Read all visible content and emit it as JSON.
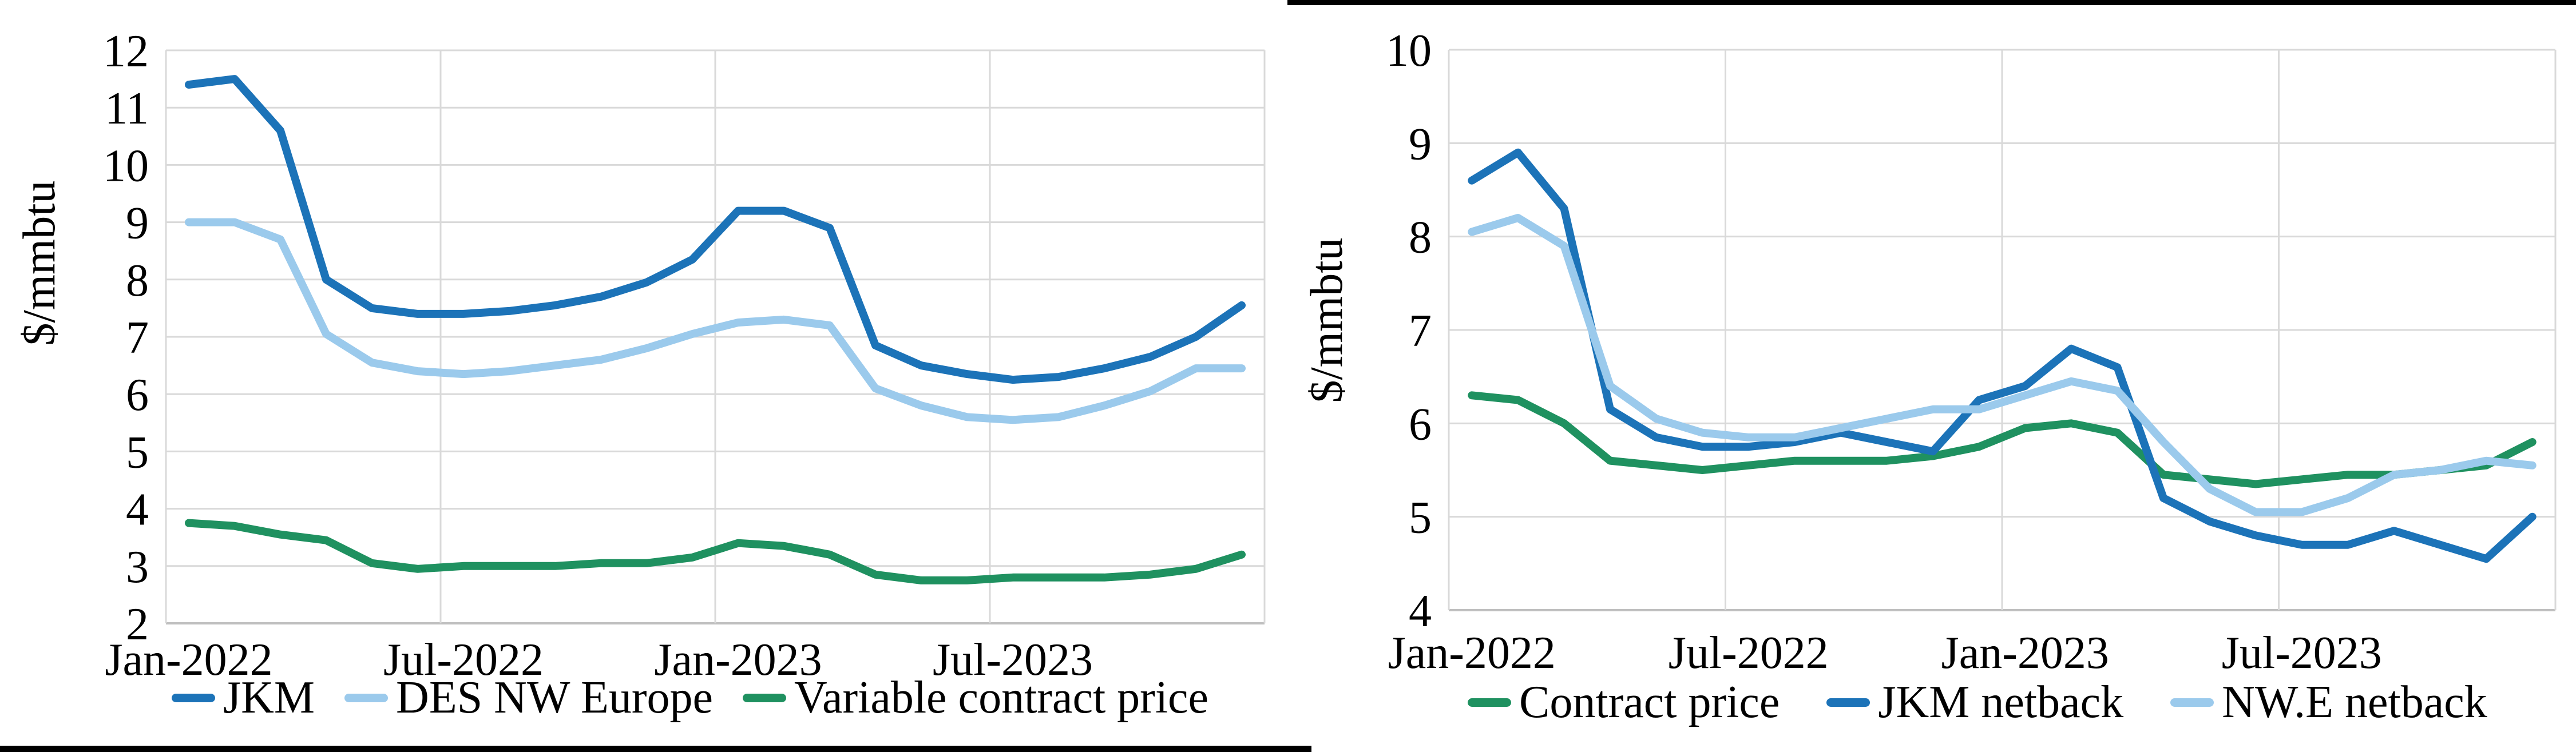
{
  "figure": {
    "background": "#ffffff",
    "border_bar_color": "#000000"
  },
  "colors": {
    "gridline": "#d9d9d9",
    "axis_line": "#bfbfbf",
    "text": "#000000",
    "dark_blue": "#1c73b8",
    "light_blue": "#9bcaec",
    "green": "#1f9160"
  },
  "chart_data": [
    {
      "type": "line",
      "title": "",
      "xlabel": "",
      "ylabel": "$/mmbtu",
      "ylim": [
        2,
        12
      ],
      "ytick_interval": 1,
      "grid": true,
      "legend_position": "bottom",
      "categories": [
        "Jan-2022",
        "Feb-2022",
        "Mar-2022",
        "Apr-2022",
        "May-2022",
        "Jun-2022",
        "Jul-2022",
        "Aug-2022",
        "Sep-2022",
        "Oct-2022",
        "Nov-2022",
        "Dec-2022",
        "Jan-2023",
        "Feb-2023",
        "Mar-2023",
        "Apr-2023",
        "May-2023",
        "Jun-2023",
        "Jul-2023",
        "Aug-2023",
        "Sep-2023",
        "Oct-2023",
        "Nov-2023",
        "Dec-2023"
      ],
      "xtick_indices": [
        0,
        6,
        12,
        18
      ],
      "xtick_labels": [
        "Jan-2022",
        "Jul-2022",
        "Jan-2023",
        "Jul-2023"
      ],
      "series": [
        {
          "name": "JKM",
          "color": "#1c73b8",
          "values": [
            11.4,
            11.5,
            10.6,
            8.0,
            7.5,
            7.4,
            7.4,
            7.45,
            7.55,
            7.7,
            7.95,
            8.35,
            9.2,
            9.2,
            8.9,
            6.85,
            6.5,
            6.35,
            6.25,
            6.3,
            6.45,
            6.65,
            7.0,
            7.55
          ]
        },
        {
          "name": "DES NW Europe",
          "color": "#9bcaec",
          "values": [
            9.0,
            9.0,
            8.7,
            7.05,
            6.55,
            6.4,
            6.35,
            6.4,
            6.5,
            6.6,
            6.8,
            7.05,
            7.25,
            7.3,
            7.2,
            6.1,
            5.8,
            5.6,
            5.55,
            5.6,
            5.8,
            6.05,
            6.45,
            6.45
          ]
        },
        {
          "name": "Variable contract price",
          "color": "#1f9160",
          "values": [
            3.75,
            3.7,
            3.55,
            3.45,
            3.05,
            2.95,
            3.0,
            3.0,
            3.0,
            3.05,
            3.05,
            3.15,
            3.4,
            3.35,
            3.2,
            2.85,
            2.75,
            2.75,
            2.8,
            2.8,
            2.8,
            2.85,
            2.95,
            3.2
          ]
        }
      ]
    },
    {
      "type": "line",
      "title": "",
      "xlabel": "",
      "ylabel": "$/mmbtu",
      "ylim": [
        4,
        10
      ],
      "ytick_interval": 1,
      "grid": true,
      "legend_position": "bottom",
      "categories": [
        "Jan-2022",
        "Feb-2022",
        "Mar-2022",
        "Apr-2022",
        "May-2022",
        "Jun-2022",
        "Jul-2022",
        "Aug-2022",
        "Sep-2022",
        "Oct-2022",
        "Nov-2022",
        "Dec-2022",
        "Jan-2023",
        "Feb-2023",
        "Mar-2023",
        "Apr-2023",
        "May-2023",
        "Jun-2023",
        "Jul-2023",
        "Aug-2023",
        "Sep-2023",
        "Oct-2023",
        "Nov-2023",
        "Dec-2023"
      ],
      "xtick_indices": [
        0,
        6,
        12,
        18
      ],
      "xtick_labels": [
        "Jan-2022",
        "Jul-2022",
        "Jan-2023",
        "Jul-2023"
      ],
      "series": [
        {
          "name": "Contract price",
          "color": "#1f9160",
          "values": [
            6.3,
            6.25,
            6.0,
            5.6,
            5.55,
            5.5,
            5.55,
            5.6,
            5.6,
            5.6,
            5.65,
            5.75,
            5.95,
            6.0,
            5.9,
            5.45,
            5.4,
            5.35,
            5.4,
            5.45,
            5.45,
            5.5,
            5.55,
            5.8
          ]
        },
        {
          "name": "JKM netback",
          "color": "#1c73b8",
          "values": [
            8.6,
            8.9,
            8.3,
            6.15,
            5.85,
            5.75,
            5.75,
            5.8,
            5.9,
            5.8,
            5.7,
            6.25,
            6.4,
            6.8,
            6.6,
            5.2,
            4.95,
            4.8,
            4.7,
            4.7,
            4.85,
            4.7,
            4.55,
            5.0
          ]
        },
        {
          "name": "NW.E netback",
          "color": "#9bcaec",
          "values": [
            8.05,
            8.2,
            7.9,
            6.4,
            6.05,
            5.9,
            5.85,
            5.85,
            5.95,
            6.05,
            6.15,
            6.15,
            6.3,
            6.45,
            6.35,
            5.8,
            5.3,
            5.05,
            5.05,
            5.2,
            5.45,
            5.5,
            5.6,
            5.55
          ]
        }
      ]
    }
  ]
}
